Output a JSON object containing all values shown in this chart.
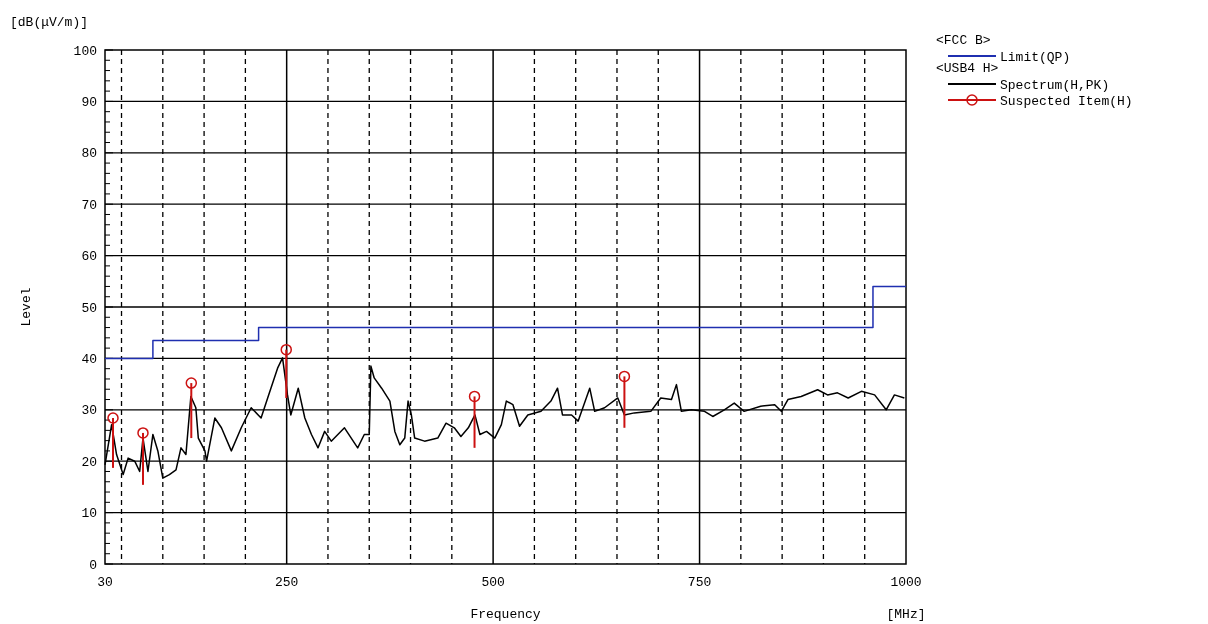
{
  "chart_data": {
    "type": "line",
    "xlabel": "Frequency",
    "ylabel": "Level",
    "legend_title": "<FCC B>",
    "annotations": [
      "[dB(μV/m)]",
      "[MHz]",
      "<USB4 H>"
    ],
    "xlim": [
      30,
      1000
    ],
    "ylim": [
      0,
      100
    ],
    "xticks": [
      30,
      {
        "value": 50,
        "label": null
      },
      {
        "value": 100,
        "label": null
      },
      {
        "value": 150,
        "label": null
      },
      {
        "value": 200,
        "label": null
      },
      250,
      {
        "value": 300,
        "label": null
      },
      {
        "value": 350,
        "label": null
      },
      {
        "value": 400,
        "label": null
      },
      {
        "value": 450,
        "label": null
      },
      500,
      {
        "value": 550,
        "label": null
      },
      {
        "value": 600,
        "label": null
      },
      {
        "value": 650,
        "label": null
      },
      {
        "value": 700,
        "label": null
      },
      750,
      {
        "value": 800,
        "label": null
      },
      {
        "value": 850,
        "label": null
      },
      {
        "value": 900,
        "label": null
      },
      {
        "value": 950,
        "label": null
      },
      1000
    ],
    "yticks": [
      0,
      {
        "value": 2,
        "label": null
      },
      {
        "value": 4,
        "label": null
      },
      {
        "value": 6,
        "label": null
      },
      {
        "value": 8,
        "label": null
      },
      10,
      {
        "value": 12,
        "label": null
      },
      {
        "value": 14,
        "label": null
      },
      {
        "value": 16,
        "label": null
      },
      {
        "value": 18,
        "label": null
      },
      20,
      {
        "value": 22,
        "label": null
      },
      {
        "value": 24,
        "label": null
      },
      {
        "value": 26,
        "label": null
      },
      {
        "value": 28,
        "label": null
      },
      30,
      {
        "value": 32,
        "label": null
      },
      {
        "value": 34,
        "label": null
      },
      {
        "value": 36,
        "label": null
      },
      {
        "value": 38,
        "label": null
      },
      40,
      {
        "value": 42,
        "label": null
      },
      {
        "value": 44,
        "label": null
      },
      {
        "value": 46,
        "label": null
      },
      {
        "value": 48,
        "label": null
      },
      50,
      {
        "value": 52,
        "label": null
      },
      {
        "value": 54,
        "label": null
      },
      {
        "value": 56,
        "label": null
      },
      {
        "value": 58,
        "label": null
      },
      60,
      {
        "value": 62,
        "label": null
      },
      {
        "value": 64,
        "label": null
      },
      {
        "value": 66,
        "label": null
      },
      {
        "value": 68,
        "label": null
      },
      70,
      {
        "value": 72,
        "label": null
      },
      {
        "value": 74,
        "label": null
      },
      {
        "value": 76,
        "label": null
      },
      {
        "value": 78,
        "label": null
      },
      80,
      {
        "value": 82,
        "label": null
      },
      {
        "value": 84,
        "label": null
      },
      {
        "value": 86,
        "label": null
      },
      {
        "value": 88,
        "label": null
      },
      90,
      {
        "value": 92,
        "label": null
      },
      {
        "value": 94,
        "label": null
      },
      {
        "value": 96,
        "label": null
      },
      {
        "value": 98,
        "label": null
      },
      100
    ],
    "grid": true,
    "legend": "right",
    "series": [
      {
        "name": "Limit(QP)",
        "type": "step",
        "color": "#1f2fb0",
        "x": [
          30,
          88,
          88,
          216,
          216,
          960,
          960,
          1000
        ],
        "values": [
          40,
          40,
          43.5,
          43.5,
          46,
          46,
          54,
          54
        ]
      },
      {
        "name": "Spectrum(H,PK)",
        "color": "#000000",
        "x": [
          30,
          38,
          44,
          52,
          58,
          66,
          72,
          76,
          82,
          88,
          94,
          100,
          108,
          116,
          122,
          128,
          134,
          140,
          143,
          151,
          153,
          163,
          171,
          183,
          195,
          207,
          219,
          227,
          239,
          245,
          251,
          255,
          264,
          272,
          280,
          288,
          296,
          304,
          320,
          336,
          344,
          350,
          352,
          356,
          365,
          375,
          381,
          387,
          393,
          397,
          401,
          405,
          417,
          433,
          443,
          453,
          461,
          470,
          478,
          484,
          492,
          502,
          510,
          516,
          524,
          532,
          542,
          558,
          570,
          578,
          584,
          595,
          603,
          617,
          623,
          635,
          651,
          659,
          671,
          691,
          703,
          716,
          722,
          728,
          740,
          756,
          766,
          780,
          792,
          804,
          824,
          841,
          849,
          857,
          873,
          893,
          905,
          917,
          930,
          946,
          962,
          976,
          986,
          998
        ],
        "values": [
          19.3,
          27.1,
          21.3,
          17.4,
          20.6,
          20,
          18,
          24.5,
          18,
          25.2,
          22,
          16.7,
          17.4,
          18.3,
          22.6,
          21.3,
          32.6,
          30.4,
          24.5,
          22,
          20,
          28.4,
          26.5,
          22,
          26.5,
          30.4,
          28.4,
          32.3,
          38.1,
          40.1,
          32.9,
          29,
          34.2,
          28.4,
          25.2,
          22.6,
          25.8,
          23.9,
          26.5,
          22.6,
          25.2,
          25.2,
          38.5,
          36.2,
          34.2,
          31.7,
          25.8,
          23.2,
          24.5,
          31.7,
          29,
          24.5,
          23.9,
          24.5,
          27.4,
          26.5,
          24.8,
          26.5,
          29,
          25.2,
          25.8,
          24.5,
          27.1,
          31.7,
          31,
          26.8,
          29,
          29.7,
          31.7,
          34.2,
          29,
          29,
          27.8,
          34.2,
          29.7,
          30.4,
          32.3,
          29,
          29.4,
          29.7,
          32.3,
          32,
          34.9,
          29.7,
          30,
          29.7,
          28.7,
          30,
          31.3,
          29.7,
          30.7,
          31,
          29.7,
          32,
          32.6,
          33.9,
          32.9,
          33.3,
          32.3,
          33.6,
          32.9,
          30,
          32.9,
          32.3
        ]
      },
      {
        "name": "Suspected Item(H)",
        "type": "scatter",
        "color": "#cc1111",
        "marker": "circle",
        "x": [
          39.7,
          76,
          134.5,
          249.5,
          477.5,
          659
        ],
        "values": [
          28.4,
          25.5,
          35.2,
          41.7,
          32.6,
          36.5
        ],
        "errors": [
          [
            18.7,
            28.4
          ],
          [
            15.4,
            25.5
          ],
          [
            24.5,
            35.2
          ],
          [
            32.3,
            41.7
          ],
          [
            22.6,
            32.6
          ],
          [
            26.5,
            36.5
          ]
        ]
      }
    ]
  }
}
